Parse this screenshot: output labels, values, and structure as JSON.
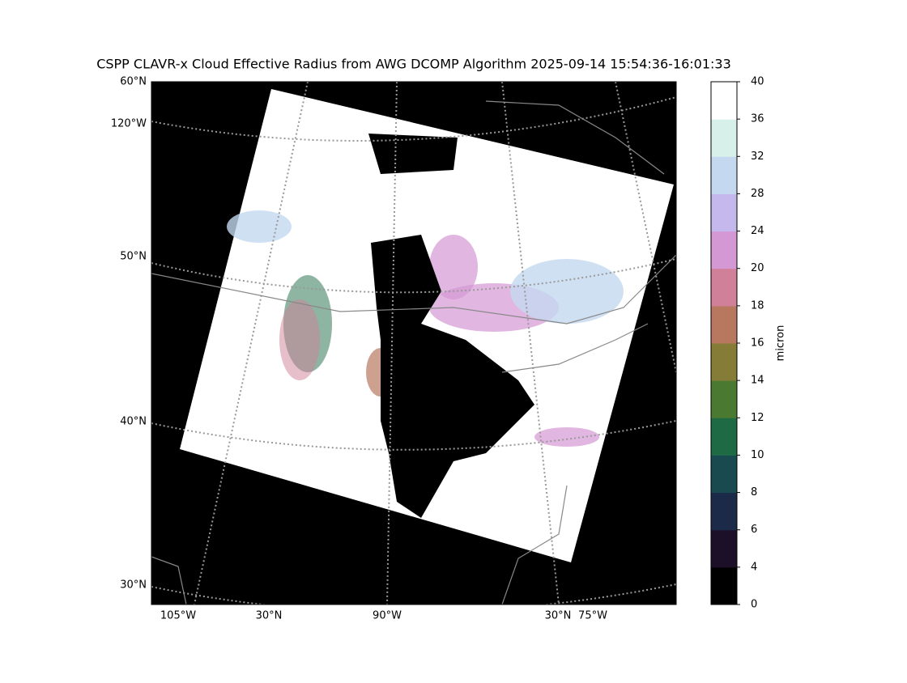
{
  "map": {
    "title": "CSPP CLAVR-x Cloud Effective Radius from AWG DCOMP Algorithm 2025-09-14 15:54:36-16:01:33",
    "left_labels": [
      "60°N",
      "120°W",
      "50°N",
      "40°N",
      "30°N"
    ],
    "bottom_labels": [
      "105°W",
      "30°N",
      "90°W",
      "30°N",
      "75°W"
    ]
  },
  "colorbar": {
    "label": "micron",
    "ticks": [
      0,
      4,
      6,
      8,
      10,
      12,
      14,
      16,
      18,
      20,
      24,
      28,
      32,
      36,
      40
    ],
    "colors": [
      "#000000",
      "#1c1028",
      "#1c2a4a",
      "#194a50",
      "#1e6a45",
      "#4a7a32",
      "#857c38",
      "#b87860",
      "#d08098",
      "#d498d4",
      "#c4b8ec",
      "#c4d8f0",
      "#d8f0ea",
      "#ffffff"
    ]
  }
}
